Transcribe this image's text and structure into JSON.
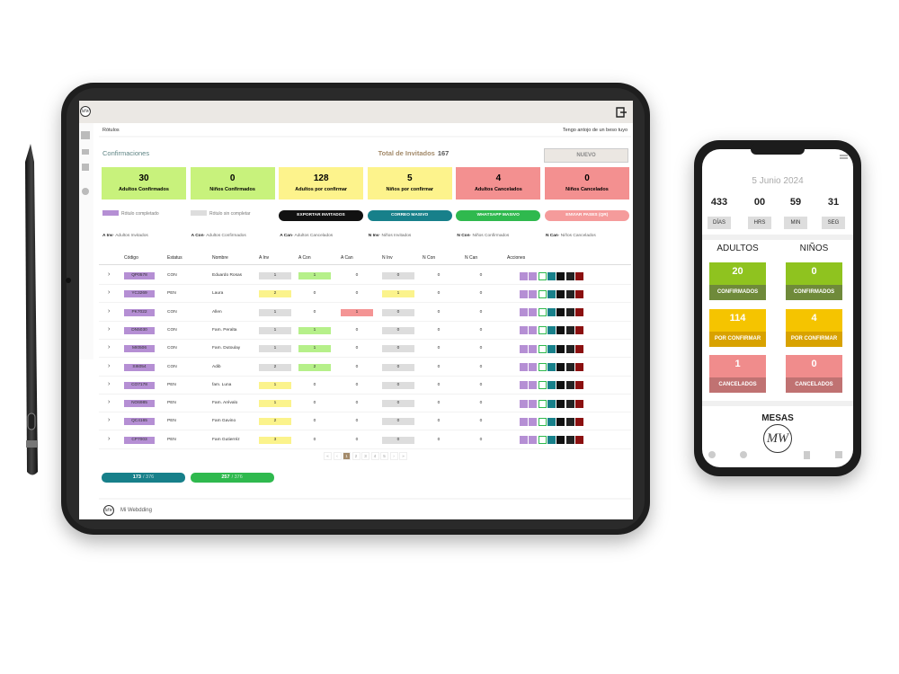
{
  "tablet": {
    "logo": "MW",
    "breadcrumb": "Rótulos",
    "tagline": "Tengo antojo de un beso tuyo",
    "section": "Confirmaciones",
    "total_label": "Total de Invitados",
    "total": 167,
    "new_button": "NUEVO",
    "cards": [
      {
        "value": 30,
        "label": "Adultos Confirmados"
      },
      {
        "value": 0,
        "label": "Niños Confirmados"
      },
      {
        "value": 128,
        "label": "Adultos por confirmar"
      },
      {
        "value": 5,
        "label": "Niños por confirmar"
      },
      {
        "value": 4,
        "label": "Adultos Cancelados"
      },
      {
        "value": 0,
        "label": "Niños Cancelados"
      }
    ],
    "legend": [
      "Rótulo completado",
      "Rótulo sin completar"
    ],
    "buttons": [
      "EXPORTAR INVITADOS",
      "CORREO MASIVO",
      "WHATSAPP MASIVO",
      "ENVIAR PASES (QR)"
    ],
    "abbreviations": [
      {
        "abbr": "A Inv",
        "text": "- Adultos Invitados"
      },
      {
        "abbr": "A Con",
        "text": "- Adultos Confirmados"
      },
      {
        "abbr": "A Can",
        "text": "- Adultos Cancelados"
      },
      {
        "abbr": "N Inv",
        "text": "- Niños Invitados"
      },
      {
        "abbr": "N Con",
        "text": "- Niños Confirmados"
      },
      {
        "abbr": "N Can",
        "text": "- Niños Cancelados"
      }
    ],
    "table": {
      "headers": [
        "Código",
        "Estatus",
        "Nombre",
        "A Inv",
        "A Con",
        "A Can",
        "N Inv",
        "N Con",
        "N Can",
        "Acciones"
      ],
      "rows": [
        [
          "QP0578",
          "CON",
          "Eduardo Rosas",
          1,
          1,
          0,
          0,
          0,
          0
        ],
        [
          "YC3269",
          "PEN",
          "Laura",
          2,
          0,
          0,
          1,
          0,
          0
        ],
        [
          "PK7022",
          "CON",
          "Allen",
          1,
          0,
          1,
          0,
          0,
          0
        ],
        [
          "DN5030",
          "CON",
          "Fam. Peralta",
          1,
          1,
          0,
          0,
          0,
          0
        ],
        [
          "MI0506",
          "CON",
          "Fam. Dutoulay",
          1,
          1,
          0,
          0,
          0,
          0
        ],
        [
          "SI6054",
          "CON",
          "Adib",
          2,
          2,
          0,
          0,
          0,
          0
        ],
        [
          "CO7178",
          "PEN",
          "fam. Luna",
          1,
          0,
          0,
          0,
          0,
          0
        ],
        [
          "NO6985",
          "PEN",
          "Fam. Arévalo",
          1,
          0,
          0,
          0,
          0,
          0
        ],
        [
          "QC4165",
          "PEN",
          "Fam Gavino",
          2,
          0,
          0,
          0,
          0,
          0
        ],
        [
          "CP7003",
          "PEN",
          "Fam Gutierréz",
          3,
          0,
          0,
          0,
          0,
          0
        ]
      ]
    },
    "pagination": [
      "«",
      "‹",
      "1",
      "2",
      "3",
      "4",
      "5",
      "›",
      "»"
    ],
    "counters": [
      {
        "sent": 173,
        "total": "/ 376"
      },
      {
        "sent": 257,
        "total": "/ 376"
      }
    ],
    "footer": "Mi Webdding"
  },
  "phone": {
    "date": "5 Junio 2024",
    "countdown": [
      {
        "value": "433",
        "label": "DÍAS"
      },
      {
        "value": "00",
        "label": "HRS"
      },
      {
        "value": "59",
        "label": "MIN"
      },
      {
        "value": "31",
        "label": "SEG"
      }
    ],
    "columns": [
      {
        "title": "ADULTOS",
        "stats": [
          {
            "value": 20,
            "label": "CONFIRMADOS"
          },
          {
            "value": 114,
            "label": "POR CONFIRMAR"
          },
          {
            "value": 1,
            "label": "CANCELADOS"
          }
        ]
      },
      {
        "title": "NIÑOS",
        "stats": [
          {
            "value": 0,
            "label": "CONFIRMADOS"
          },
          {
            "value": 4,
            "label": "POR CONFIRMAR"
          },
          {
            "value": 0,
            "label": "CANCELADOS"
          }
        ]
      }
    ],
    "section": "MESAS",
    "logo": "MW"
  }
}
